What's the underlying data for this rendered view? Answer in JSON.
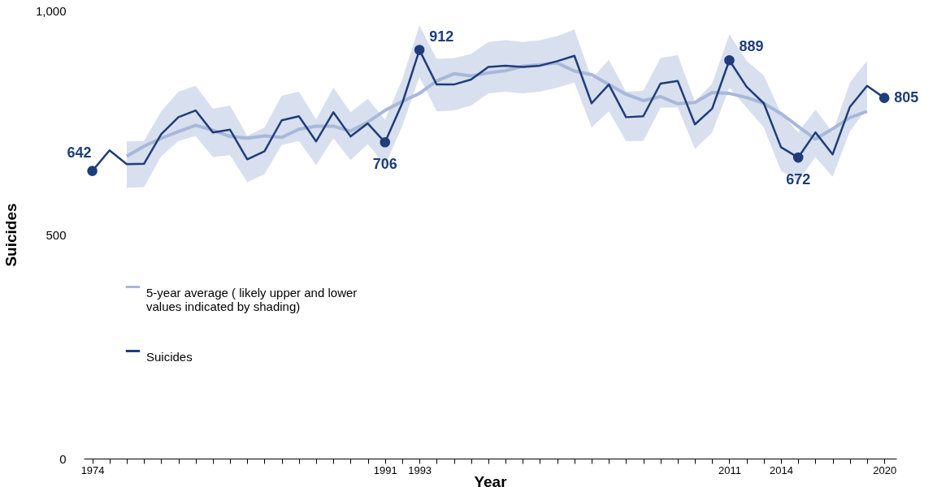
{
  "chart_data": {
    "type": "line",
    "xlabel": "Year",
    "ylabel": "Suicides",
    "x": [
      1974,
      1975,
      1976,
      1977,
      1978,
      1979,
      1980,
      1981,
      1982,
      1983,
      1984,
      1985,
      1986,
      1987,
      1988,
      1989,
      1990,
      1991,
      1992,
      1993,
      1994,
      1995,
      1996,
      1997,
      1998,
      1999,
      2000,
      2001,
      2002,
      2003,
      2004,
      2005,
      2006,
      2007,
      2008,
      2009,
      2010,
      2011,
      2012,
      2013,
      2014,
      2015,
      2016,
      2017,
      2018,
      2019,
      2020
    ],
    "series": [
      {
        "name": "5-year average ( likely upper and lower values indicated by shading)",
        "color": "#a8b8da",
        "x": [
          1976,
          1977,
          1978,
          1979,
          1980,
          1981,
          1982,
          1983,
          1984,
          1985,
          1986,
          1987,
          1988,
          1989,
          1990,
          1991,
          1992,
          1993,
          1994,
          1995,
          1996,
          1997,
          1998,
          1999,
          2000,
          2001,
          2002,
          2003,
          2004,
          2005,
          2006,
          2007,
          2008,
          2009,
          2010,
          2011,
          2012,
          2013,
          2014,
          2015,
          2016,
          2017,
          2018,
          2019
        ],
        "values": [
          675,
          697,
          715,
          730,
          744,
          733,
          719,
          715,
          720,
          717,
          735,
          742,
          742,
          731,
          751,
          777,
          797,
          815,
          843,
          859,
          854,
          861,
          866,
          876,
          879,
          883,
          865,
          857,
          835,
          813,
          799,
          808,
          792,
          795,
          817,
          815,
          806,
          793,
          770,
          741,
          713,
          736,
          761,
          775
        ],
        "lower": [
          604,
          606,
          675,
          709,
          720,
          673,
          677,
          617,
          635,
          700,
          709,
          655,
          715,
          666,
          702,
          655,
          742,
          852,
          775,
          777,
          788,
          815,
          819,
          815,
          819,
          828,
          839,
          739,
          775,
          709,
          709,
          783,
          784,
          691,
          728,
          828,
          783,
          739,
          642,
          620,
          673,
          629,
          730,
          783
        ],
        "upper": [
          708,
          709,
          775,
          819,
          832,
          781,
          788,
          720,
          739,
          810,
          819,
          757,
          828,
          773,
          803,
          757,
          846,
          967,
          892,
          894,
          903,
          930,
          934,
          930,
          934,
          943,
          958,
          848,
          890,
          819,
          821,
          894,
          901,
          797,
          837,
          947,
          888,
          855,
          770,
          728,
          779,
          728,
          839,
          888
        ]
      },
      {
        "name": "Suicides",
        "color": "#1f3d7a",
        "values": [
          642,
          688,
          657,
          658,
          724,
          762,
          777,
          728,
          734,
          668,
          686,
          755,
          764,
          708,
          773,
          719,
          748,
          706,
          793,
          912,
          835,
          835,
          846,
          874,
          877,
          874,
          877,
          887,
          899,
          793,
          835,
          762,
          764,
          837,
          843,
          746,
          781,
          889,
          830,
          793,
          695,
          672,
          728,
          679,
          785,
          832,
          805
        ]
      }
    ],
    "annotations": [
      {
        "text": "642",
        "x": 1974,
        "y": 642
      },
      {
        "text": "912",
        "x": 1993,
        "y": 912
      },
      {
        "text": "706",
        "x": 1991,
        "y": 706
      },
      {
        "text": "889",
        "x": 2011,
        "y": 889
      },
      {
        "text": "672",
        "x": 2015,
        "y": 672
      },
      {
        "text": "805",
        "x": 2020,
        "y": 805
      }
    ],
    "xlim": [
      1973.5,
      2020.7
    ],
    "xticks": [
      1974,
      {
        "value": 1975,
        "label": null
      },
      {
        "value": 1976,
        "label": null
      },
      {
        "value": 1977,
        "label": null
      },
      {
        "value": 1978,
        "label": null
      },
      {
        "value": 1979,
        "label": null
      },
      {
        "value": 1980,
        "label": null
      },
      {
        "value": 1981,
        "label": null
      },
      {
        "value": 1982,
        "label": null
      },
      {
        "value": 1983,
        "label": null
      },
      {
        "value": 1984,
        "label": null
      },
      {
        "value": 1985,
        "label": null
      },
      {
        "value": 1986,
        "label": null
      },
      {
        "value": 1987,
        "label": null
      },
      {
        "value": 1988,
        "label": null
      },
      {
        "value": 1989,
        "label": null
      },
      {
        "value": 1990,
        "label": null
      },
      1991,
      {
        "value": 1992,
        "label": null
      },
      1993,
      {
        "value": 1994,
        "label": null
      },
      {
        "value": 1995,
        "label": null
      },
      {
        "value": 1996,
        "label": null
      },
      {
        "value": 1997,
        "label": null
      },
      {
        "value": 1998,
        "label": null
      },
      {
        "value": 1999,
        "label": null
      },
      {
        "value": 2000,
        "label": null
      },
      {
        "value": 2001,
        "label": null
      },
      {
        "value": 2002,
        "label": null
      },
      {
        "value": 2003,
        "label": null
      },
      {
        "value": 2004,
        "label": null
      },
      {
        "value": 2005,
        "label": null
      },
      {
        "value": 2006,
        "label": null
      },
      {
        "value": 2007,
        "label": null
      },
      {
        "value": 2008,
        "label": null
      },
      {
        "value": 2009,
        "label": null
      },
      {
        "value": 2010,
        "label": null
      },
      2011,
      {
        "value": 2012,
        "label": null
      },
      {
        "value": 2013,
        "label": null
      },
      2014,
      {
        "value": 2015,
        "label": null
      },
      {
        "value": 2016,
        "label": null
      },
      {
        "value": 2017,
        "label": null
      },
      {
        "value": 2018,
        "label": null
      },
      {
        "value": 2019,
        "label": null
      },
      2020
    ],
    "ylim": [
      0,
      1000
    ],
    "yticks": [
      0,
      500,
      {
        "value": 1000,
        "label": "1,000"
      }
    ],
    "grid": false,
    "legend": "left"
  }
}
